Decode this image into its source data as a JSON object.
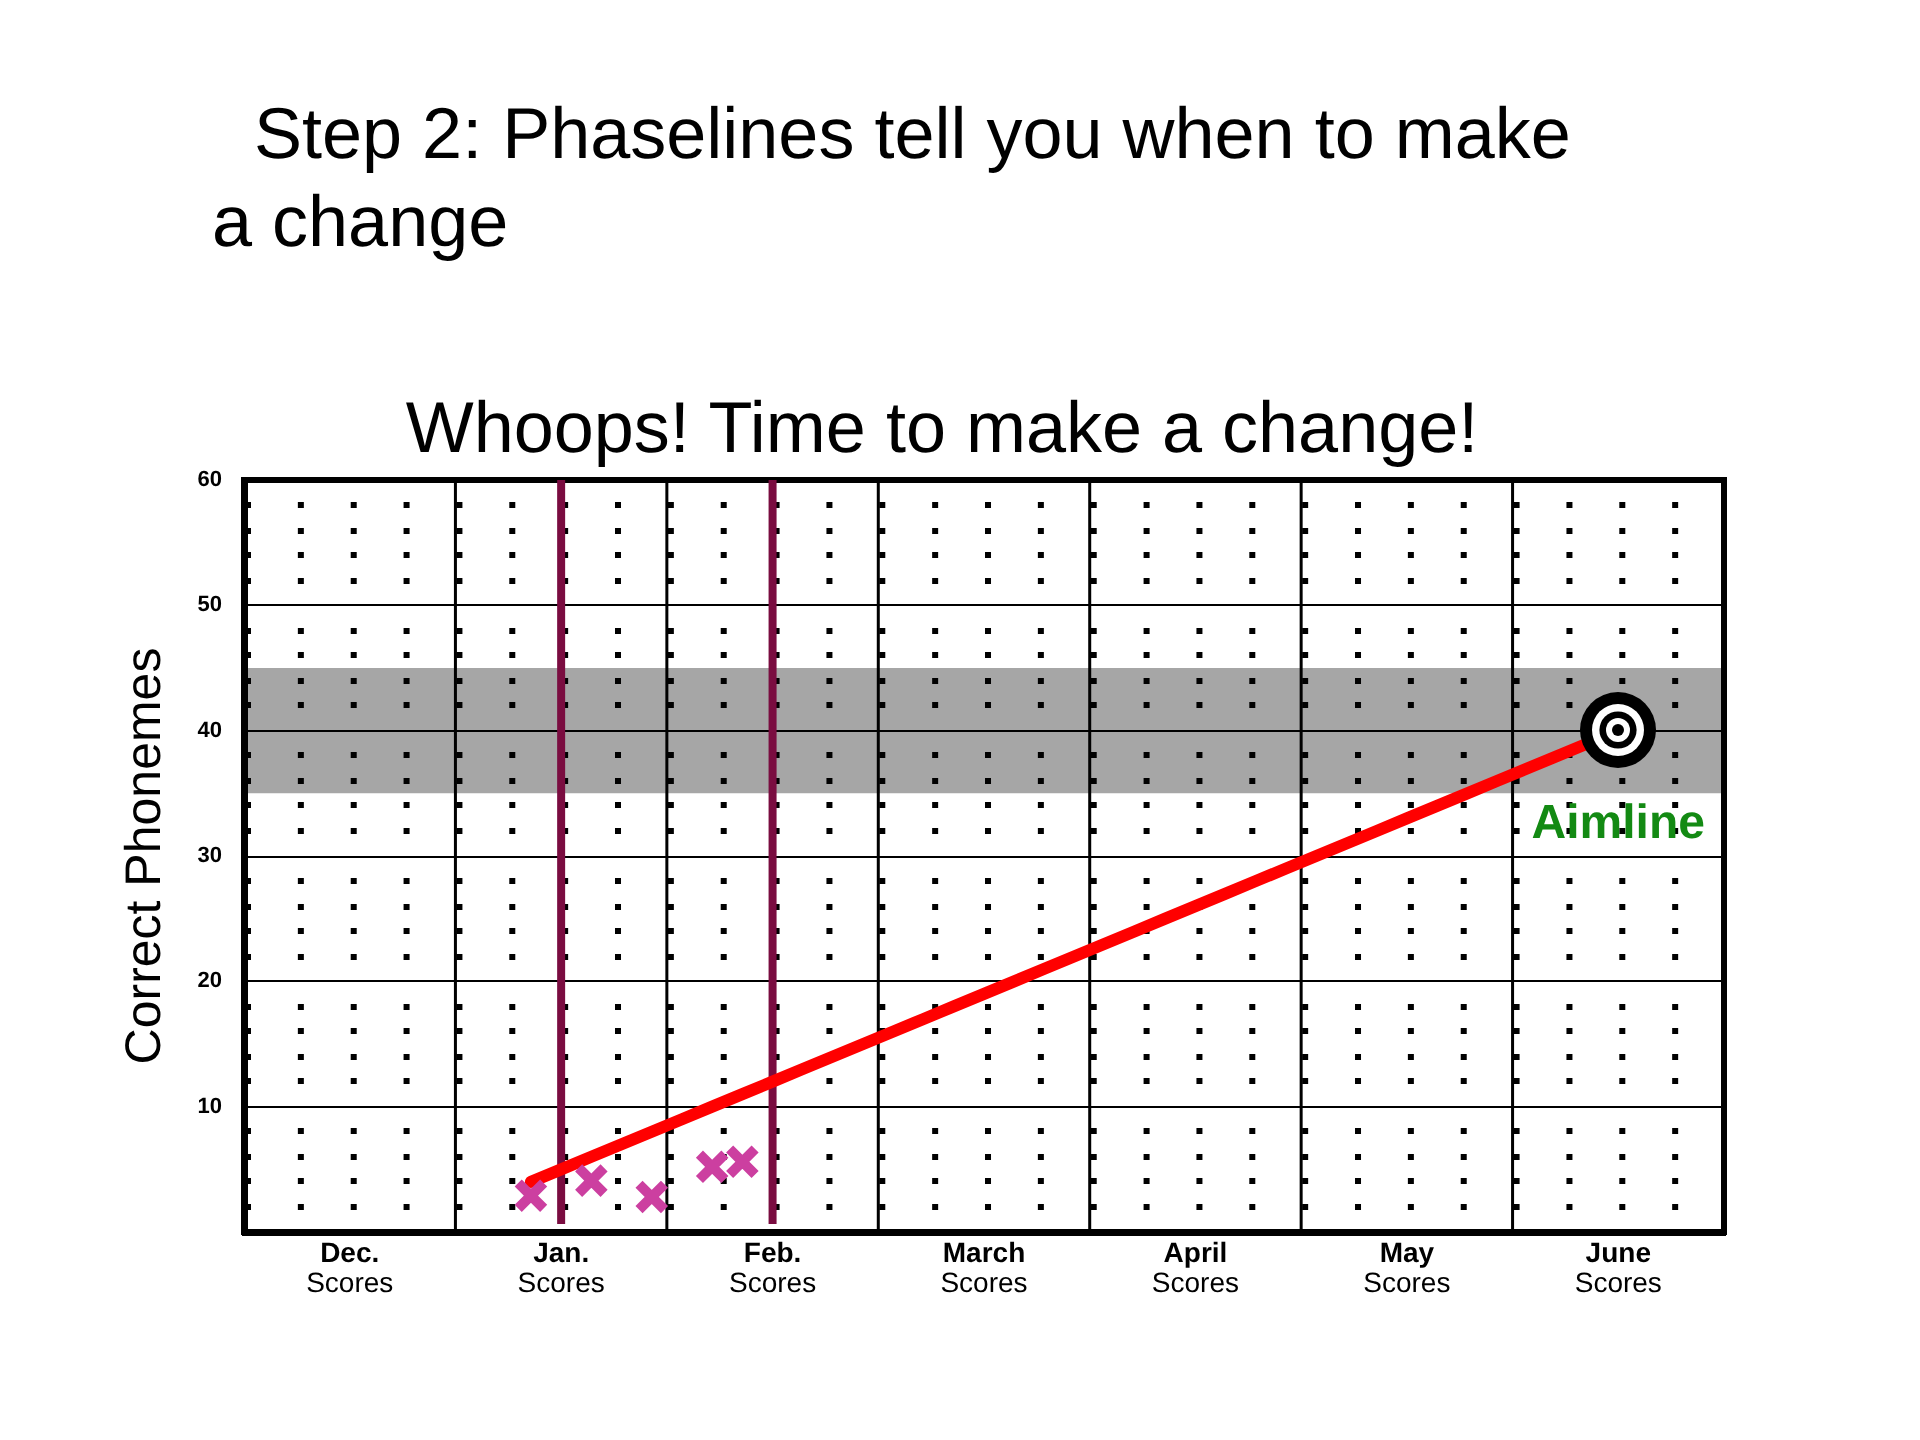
{
  "chart_data": {
    "type": "scatter",
    "title": "Step 2: Phaselines tell you when to make a change",
    "subtitle": "Whoops! Time to make a change!",
    "ylabel": "Correct Phonemes",
    "categories": [
      null,
      null,
      null,
      "Dec.\nScores",
      null,
      null,
      null,
      null,
      null,
      null,
      "Jan.\nScores",
      null,
      null,
      null,
      null,
      null,
      null,
      "Feb.\nScores",
      null,
      null,
      null,
      null,
      null,
      null,
      "March\nScores",
      null,
      null,
      null,
      null,
      null,
      null,
      "April\nScores",
      null,
      null,
      null,
      null,
      null,
      null,
      "May\nScores",
      null,
      null,
      null,
      null,
      null,
      null,
      "June\nScores",
      null,
      null,
      null
    ],
    "ylim": [
      0,
      60
    ],
    "yticks": [
      {
        "value": 2,
        "label": null
      },
      {
        "value": 4,
        "label": null
      },
      {
        "value": 6,
        "label": null
      },
      {
        "value": 8,
        "label": null
      },
      10,
      {
        "value": 12,
        "label": null
      },
      {
        "value": 14,
        "label": null
      },
      {
        "value": 16,
        "label": null
      },
      {
        "value": 18,
        "label": null
      },
      20,
      {
        "value": 22,
        "label": null
      },
      {
        "value": 24,
        "label": null
      },
      {
        "value": 26,
        "label": null
      },
      {
        "value": 28,
        "label": null
      },
      30,
      {
        "value": 32,
        "label": null
      },
      {
        "value": 34,
        "label": null
      },
      {
        "value": 36,
        "label": null
      },
      {
        "value": 38,
        "label": null
      },
      40,
      {
        "value": 42,
        "label": null
      },
      {
        "value": 44,
        "label": null
      },
      {
        "value": 46,
        "label": null
      },
      {
        "value": 48,
        "label": null
      },
      50,
      {
        "value": 52,
        "label": null
      },
      {
        "value": 54,
        "label": null
      },
      {
        "value": 56,
        "label": null
      },
      {
        "value": 58,
        "label": null
      },
      60
    ],
    "grid": true,
    "series": [
      {
        "color": "#cc3fa0",
        "marker": "cross",
        "values": [
          null,
          null,
          null,
          null,
          null,
          null,
          null,
          null,
          null,
          2.9,
          null,
          4.1,
          null,
          2.8,
          null,
          5.2,
          5.6,
          null,
          null,
          null,
          null,
          null,
          null,
          null,
          null,
          null,
          null,
          null,
          null,
          null,
          null,
          null,
          null,
          null,
          null,
          null,
          null,
          null,
          null,
          null,
          null,
          null,
          null,
          null,
          null,
          null,
          null,
          null,
          null
        ]
      },
      {
        "type": "line",
        "name": "Aimline",
        "color": "#ff0000",
        "marker": "none",
        "values": [
          null,
          null,
          null,
          null,
          null,
          null,
          null,
          null,
          null,
          4,
          5,
          6,
          7,
          8,
          9,
          10,
          11,
          12,
          13,
          14,
          15,
          16,
          17,
          18,
          19,
          20,
          21,
          22,
          23,
          24,
          25,
          26,
          27,
          28,
          29,
          30,
          31,
          32,
          33,
          34,
          35,
          36,
          37,
          38,
          39,
          40,
          null,
          null,
          null
        ]
      }
    ],
    "ref_lines": [
      {
        "axis": "x",
        "value": "Jan.\nScores",
        "color": "#7a0c40"
      },
      {
        "axis": "x",
        "value": "Feb.\nScores",
        "color": "#7a0c40"
      }
    ],
    "bands": [
      {
        "axis": "y",
        "from": 35,
        "to": 45,
        "color": "#a6a6a6"
      }
    ]
  }
}
